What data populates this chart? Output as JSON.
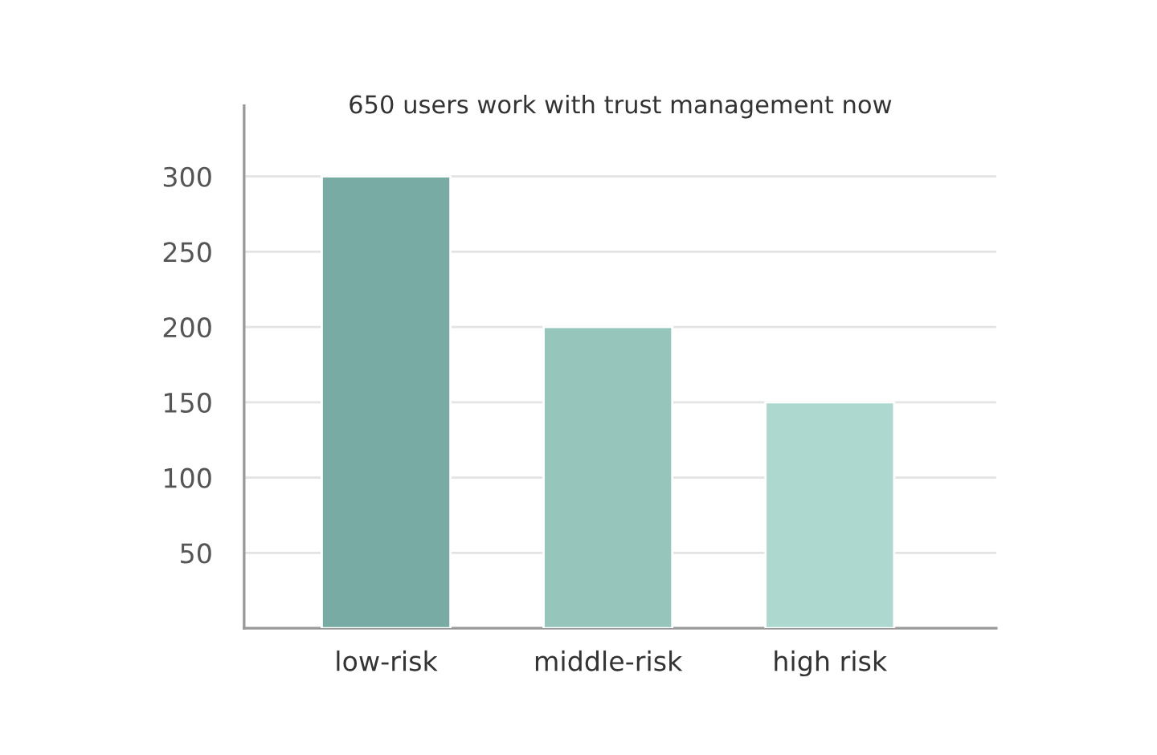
{
  "chart_data": {
    "type": "bar",
    "title": "650 users work with trust management now",
    "categories": [
      "low-risk",
      "middle-risk",
      "high risk"
    ],
    "values": [
      300,
      200,
      150
    ],
    "colors": [
      "#78aba3",
      "#95c5bb",
      "#acd8cf"
    ],
    "ylim": [
      0,
      347
    ],
    "yticks": [
      50,
      100,
      150,
      200,
      250,
      300
    ],
    "grid": "y"
  }
}
